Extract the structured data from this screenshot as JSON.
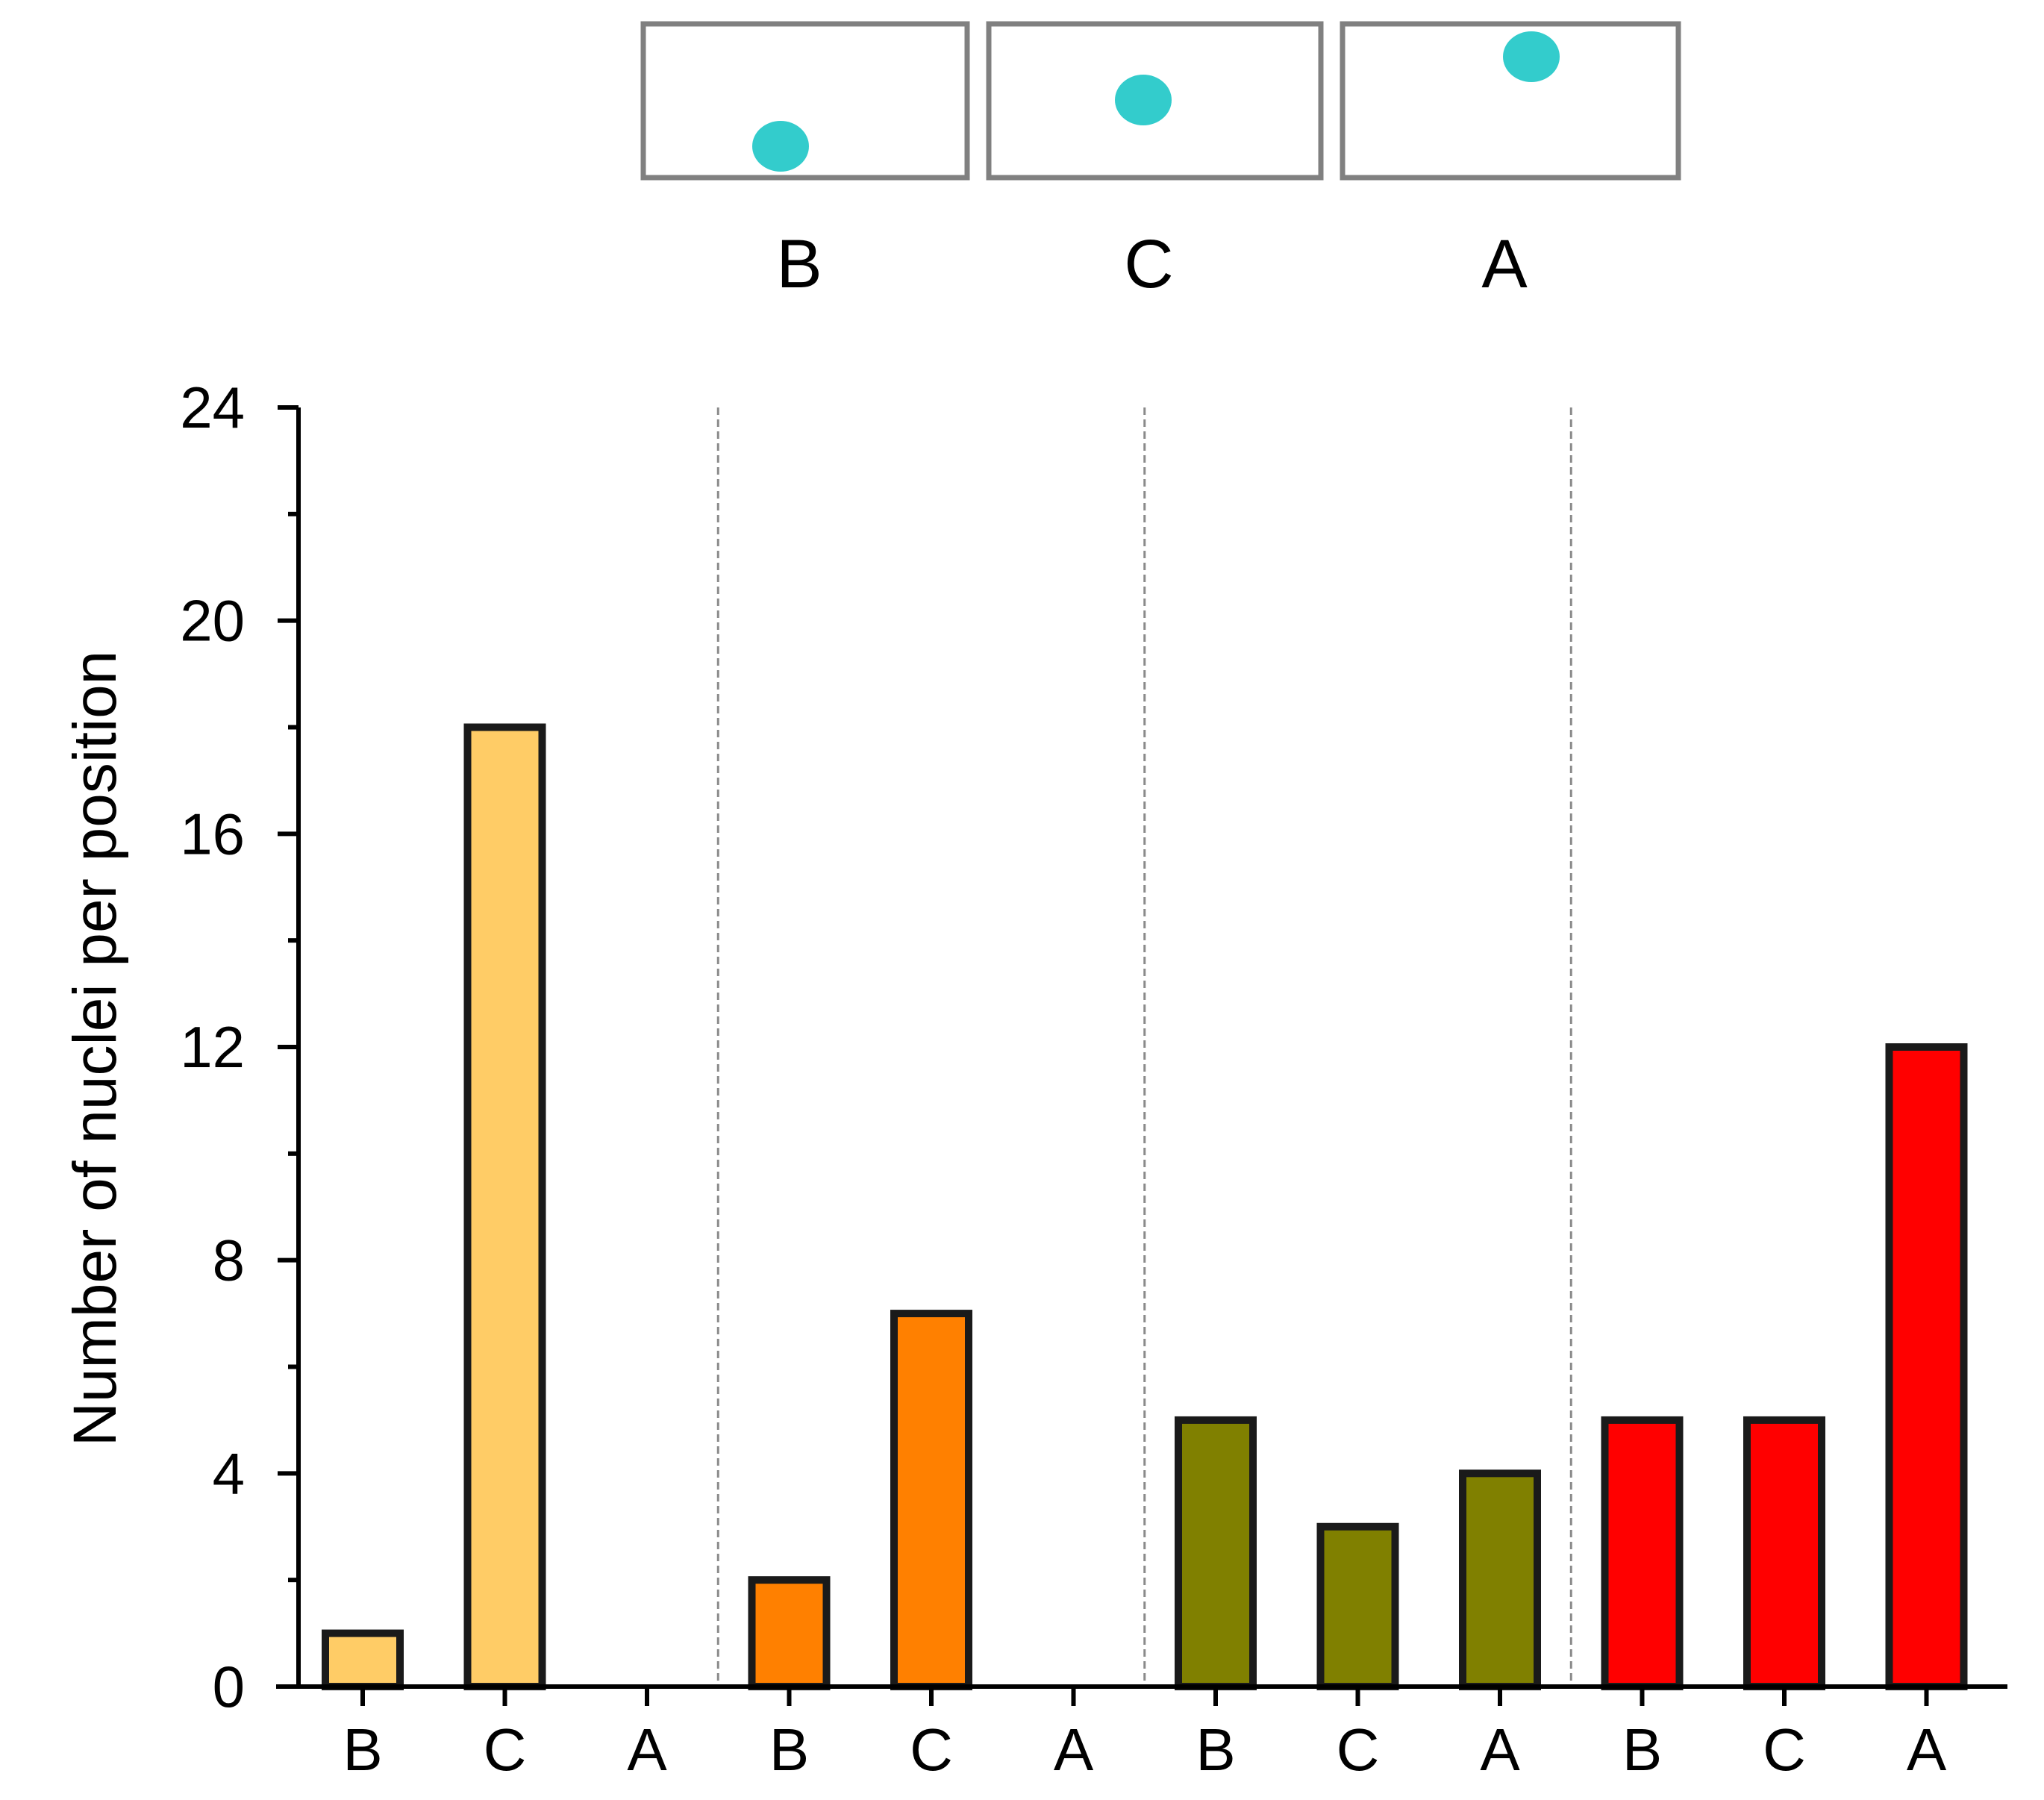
{
  "colors": {
    "group1": "#FFCC66",
    "group2": "#FF8000",
    "group3": "#808000",
    "group4": "#FF0000",
    "nucleus": "#33CCCC",
    "cell_outline": "#808080",
    "bar_outline": "#1a1a1a"
  },
  "schematic": {
    "cells": [
      {
        "label": "B",
        "nucleus_position": "bottom-left"
      },
      {
        "label": "C",
        "nucleus_position": "center"
      },
      {
        "label": "A",
        "nucleus_position": "top-right"
      }
    ]
  },
  "chart_data": {
    "type": "bar",
    "title": "",
    "xlabel": "",
    "ylabel": "Number of nuclei per position",
    "ylim": [
      0,
      24
    ],
    "yticks": [
      0,
      4,
      8,
      12,
      16,
      20,
      24
    ],
    "ytick_labels": [
      "0",
      "4",
      "8",
      "12",
      "16",
      "20",
      "24"
    ],
    "categories": [
      "B",
      "C",
      "A",
      "B",
      "C",
      "A",
      "B",
      "C",
      "A",
      "B",
      "C",
      "A"
    ],
    "values": [
      1,
      18,
      0,
      2,
      7,
      0,
      5,
      3,
      4,
      5,
      5,
      12
    ],
    "groups": [
      {
        "color_key": "group1",
        "indices": [
          0,
          1,
          2
        ]
      },
      {
        "color_key": "group2",
        "indices": [
          3,
          4,
          5
        ]
      },
      {
        "color_key": "group3",
        "indices": [
          6,
          7,
          8
        ]
      },
      {
        "color_key": "group4",
        "indices": [
          9,
          10,
          11
        ]
      }
    ],
    "grid": false,
    "group_separators": "dashed vertical lines"
  }
}
